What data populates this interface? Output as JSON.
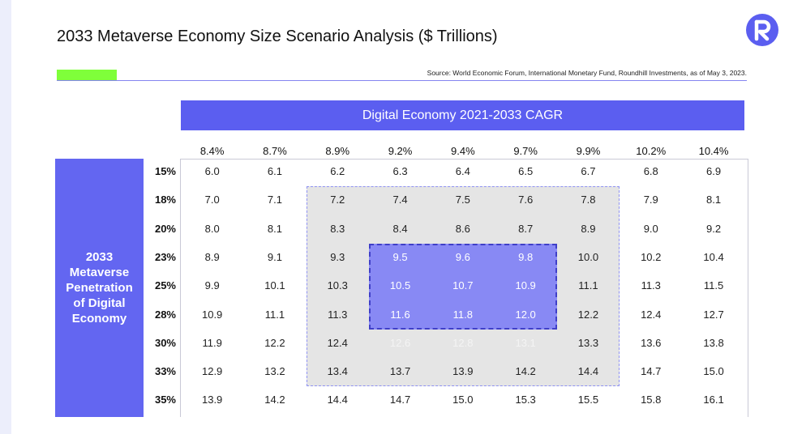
{
  "title": "2033 Metaverse Economy Size Scenario Analysis ($ Trillions)",
  "source": "Source: World Economic Forum, International Monetary Fund, Roundhill Investments, as of May 3, 2023.",
  "logo_letter": "R",
  "colors": {
    "accent": "#5b5ef0",
    "green": "#7fff3a",
    "inner_highlight": "#8889f4",
    "outer_highlight": "#e5e5e5"
  },
  "chart_data": {
    "type": "table",
    "title": "2033 Metaverse Economy Size Scenario Analysis ($ Trillions)",
    "column_axis_label": "Digital Economy 2021-2033 CAGR",
    "row_axis_label": "2033 Metaverse Penetration of Digital Economy",
    "columns": [
      "8.4%",
      "8.7%",
      "8.9%",
      "9.2%",
      "9.4%",
      "9.7%",
      "9.9%",
      "10.2%",
      "10.4%"
    ],
    "rows": [
      "15%",
      "18%",
      "20%",
      "23%",
      "25%",
      "28%",
      "30%",
      "33%",
      "35%"
    ],
    "values": [
      [
        "6.0",
        "6.1",
        "6.2",
        "6.3",
        "6.4",
        "6.5",
        "6.7",
        "6.8",
        "6.9"
      ],
      [
        "7.0",
        "7.1",
        "7.2",
        "7.4",
        "7.5",
        "7.6",
        "7.8",
        "7.9",
        "8.1"
      ],
      [
        "8.0",
        "8.1",
        "8.3",
        "8.4",
        "8.6",
        "8.7",
        "8.9",
        "9.0",
        "9.2"
      ],
      [
        "8.9",
        "9.1",
        "9.3",
        "9.5",
        "9.6",
        "9.8",
        "10.0",
        "10.2",
        "10.4"
      ],
      [
        "9.9",
        "10.1",
        "10.3",
        "10.5",
        "10.7",
        "10.9",
        "11.1",
        "11.3",
        "11.5"
      ],
      [
        "10.9",
        "11.1",
        "11.3",
        "11.6",
        "11.8",
        "12.0",
        "12.2",
        "12.4",
        "12.7"
      ],
      [
        "11.9",
        "12.2",
        "12.4",
        "12.6",
        "12.8",
        "13.1",
        "13.3",
        "13.6",
        "13.8"
      ],
      [
        "12.9",
        "13.2",
        "13.4",
        "13.7",
        "13.9",
        "14.2",
        "14.4",
        "14.7",
        "15.0"
      ],
      [
        "13.9",
        "14.2",
        "14.4",
        "14.7",
        "15.0",
        "15.3",
        "15.5",
        "15.8",
        "16.1"
      ]
    ],
    "outer_highlight": {
      "rows": [
        "18%",
        "33%"
      ],
      "columns": [
        "8.9%",
        "9.9%"
      ]
    },
    "inner_highlight": {
      "rows": [
        "23%",
        "28%"
      ],
      "columns": [
        "9.2%",
        "9.7%"
      ]
    }
  }
}
